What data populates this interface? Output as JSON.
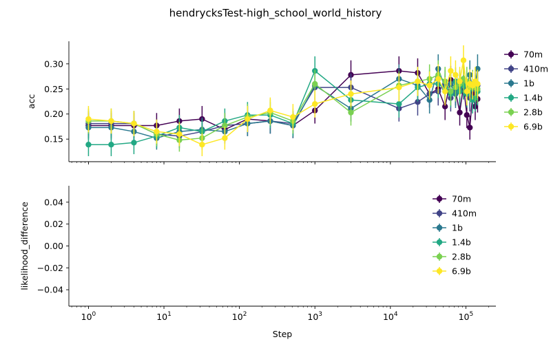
{
  "figure": {
    "title": "hendrycksTest-high_school_world_history",
    "xlabel": "Step"
  },
  "chart_data": [
    {
      "type": "line",
      "panel": "top",
      "ylabel": "acc",
      "xscale": "log",
      "xlim": [
        0.55,
        250000
      ],
      "ylim": [
        0.105,
        0.345
      ],
      "yticks": [
        0.15,
        0.2,
        0.25,
        0.3
      ],
      "ytick_labels": [
        "0.15",
        "0.20",
        "0.25",
        "0.30"
      ],
      "xticks": [
        1,
        10,
        100,
        1000,
        10000,
        100000
      ],
      "xtick_labels": [
        "10^0",
        "10^1",
        "10^2",
        "10^3",
        "10^4",
        "10^5"
      ],
      "legend_position": "outside-right",
      "series": [
        {
          "name": "70m",
          "color": "#440154",
          "x": [
            1,
            2,
            4,
            8,
            16,
            32,
            64,
            128,
            256,
            512,
            1000,
            3000,
            13000,
            23000,
            33000,
            43000,
            53000,
            63000,
            73000,
            83000,
            93000,
            103000,
            113000,
            123000,
            133000,
            143000
          ],
          "y": [
            0.177,
            0.177,
            0.177,
            0.177,
            0.186,
            0.19,
            0.169,
            0.19,
            0.186,
            0.177,
            0.207,
            0.278,
            0.286,
            0.282,
            0.24,
            0.25,
            0.215,
            0.268,
            0.245,
            0.203,
            0.257,
            0.198,
            0.173,
            0.24,
            0.215,
            0.23
          ],
          "err": [
            0.025,
            0.025,
            0.025,
            0.025,
            0.025,
            0.026,
            0.024,
            0.026,
            0.025,
            0.025,
            0.026,
            0.029,
            0.029,
            0.029,
            0.027,
            0.028,
            0.027,
            0.028,
            0.028,
            0.026,
            0.028,
            0.026,
            0.024,
            0.027,
            0.027,
            0.027
          ]
        },
        {
          "name": "410m",
          "color": "#414487",
          "x": [
            1,
            2,
            4,
            8,
            16,
            32,
            64,
            128,
            256,
            512,
            1000,
            3000,
            13000,
            23000,
            33000,
            43000,
            53000,
            63000,
            73000,
            83000,
            93000,
            103000,
            113000,
            123000,
            133000,
            143000
          ],
          "y": [
            0.181,
            0.181,
            0.181,
            0.16,
            0.156,
            0.165,
            0.177,
            0.181,
            0.186,
            0.181,
            0.253,
            0.253,
            0.211,
            0.224,
            0.24,
            0.245,
            0.26,
            0.232,
            0.245,
            0.25,
            0.265,
            0.24,
            0.232,
            0.257,
            0.25,
            0.257
          ],
          "err": [
            0.025,
            0.025,
            0.025,
            0.024,
            0.024,
            0.024,
            0.025,
            0.025,
            0.025,
            0.025,
            0.028,
            0.028,
            0.026,
            0.027,
            0.027,
            0.028,
            0.028,
            0.027,
            0.028,
            0.028,
            0.028,
            0.027,
            0.027,
            0.028,
            0.028,
            0.028
          ]
        },
        {
          "name": "1b",
          "color": "#2a788e",
          "x": [
            1,
            2,
            4,
            8,
            16,
            32,
            64,
            128,
            256,
            512,
            1000,
            3000,
            13000,
            23000,
            33000,
            43000,
            53000,
            63000,
            73000,
            83000,
            93000,
            103000,
            113000,
            123000,
            133000,
            143000
          ],
          "y": [
            0.173,
            0.173,
            0.165,
            0.152,
            0.165,
            0.169,
            0.165,
            0.181,
            0.186,
            0.177,
            0.257,
            0.211,
            0.27,
            0.257,
            0.228,
            0.29,
            0.253,
            0.26,
            0.24,
            0.257,
            0.27,
            0.257,
            0.278,
            0.25,
            0.257,
            0.29
          ],
          "err": [
            0.024,
            0.024,
            0.024,
            0.023,
            0.024,
            0.024,
            0.024,
            0.025,
            0.025,
            0.025,
            0.028,
            0.026,
            0.029,
            0.028,
            0.027,
            0.029,
            0.028,
            0.028,
            0.028,
            0.028,
            0.029,
            0.028,
            0.029,
            0.028,
            0.028,
            0.029
          ]
        },
        {
          "name": "1.4b",
          "color": "#22a884",
          "x": [
            1,
            2,
            4,
            8,
            16,
            32,
            64,
            128,
            256,
            512,
            1000,
            3000,
            13000,
            23000,
            33000,
            43000,
            53000,
            63000,
            73000,
            83000,
            93000,
            103000,
            113000,
            123000,
            133000,
            143000
          ],
          "y": [
            0.139,
            0.139,
            0.143,
            0.156,
            0.173,
            0.165,
            0.186,
            0.198,
            0.198,
            0.181,
            0.286,
            0.228,
            0.22,
            0.253,
            0.26,
            0.26,
            0.25,
            0.24,
            0.265,
            0.245,
            0.257,
            0.24,
            0.25,
            0.228,
            0.232,
            0.245
          ],
          "err": [
            0.023,
            0.023,
            0.023,
            0.024,
            0.025,
            0.024,
            0.025,
            0.026,
            0.026,
            0.025,
            0.029,
            0.027,
            0.027,
            0.028,
            0.028,
            0.028,
            0.028,
            0.027,
            0.028,
            0.028,
            0.028,
            0.027,
            0.028,
            0.027,
            0.027,
            0.028
          ]
        },
        {
          "name": "2.8b",
          "color": "#7ad151",
          "x": [
            1,
            2,
            4,
            8,
            16,
            32,
            64,
            128,
            256,
            512,
            1000,
            3000,
            13000,
            23000,
            33000,
            43000,
            53000,
            63000,
            73000,
            83000,
            93000,
            103000,
            113000,
            123000,
            133000,
            143000
          ],
          "y": [
            0.186,
            0.186,
            0.181,
            0.16,
            0.148,
            0.152,
            0.177,
            0.194,
            0.203,
            0.186,
            0.26,
            0.203,
            0.257,
            0.265,
            0.27,
            0.278,
            0.265,
            0.245,
            0.253,
            0.26,
            0.27,
            0.265,
            0.253,
            0.26,
            0.253,
            0.25
          ],
          "err": [
            0.025,
            0.025,
            0.025,
            0.024,
            0.023,
            0.023,
            0.025,
            0.026,
            0.026,
            0.025,
            0.028,
            0.026,
            0.028,
            0.029,
            0.029,
            0.029,
            0.029,
            0.028,
            0.028,
            0.028,
            0.029,
            0.029,
            0.028,
            0.028,
            0.028,
            0.028
          ]
        },
        {
          "name": "6.9b",
          "color": "#fde725",
          "x": [
            1,
            2,
            4,
            8,
            16,
            32,
            64,
            128,
            256,
            512,
            1000,
            3000,
            13000,
            23000,
            33000,
            43000,
            53000,
            63000,
            73000,
            83000,
            93000,
            103000,
            113000,
            123000,
            133000,
            143000
          ],
          "y": [
            0.19,
            0.186,
            0.181,
            0.165,
            0.16,
            0.139,
            0.152,
            0.19,
            0.207,
            0.194,
            0.22,
            0.24,
            0.253,
            0.265,
            0.257,
            0.27,
            0.245,
            0.286,
            0.278,
            0.265,
            0.307,
            0.245,
            0.26,
            0.257,
            0.265,
            0.26
          ],
          "err": [
            0.026,
            0.025,
            0.025,
            0.024,
            0.024,
            0.023,
            0.023,
            0.026,
            0.026,
            0.026,
            0.027,
            0.027,
            0.028,
            0.029,
            0.028,
            0.029,
            0.028,
            0.029,
            0.029,
            0.029,
            0.03,
            0.028,
            0.029,
            0.028,
            0.029,
            0.028
          ]
        }
      ]
    },
    {
      "type": "line",
      "panel": "bottom",
      "ylabel": "likelihood_difference",
      "xlabel": "Step",
      "xscale": "log",
      "xlim": [
        0.55,
        250000
      ],
      "ylim": [
        -0.055,
        0.055
      ],
      "yticks": [
        -0.04,
        -0.02,
        0.0,
        0.02,
        0.04
      ],
      "ytick_labels": [
        "−0.04",
        "−0.02",
        "0.00",
        "0.02",
        "0.04"
      ],
      "xticks": [
        1,
        10,
        100,
        1000,
        10000,
        100000
      ],
      "xtick_labels": [
        "10^0",
        "10^1",
        "10^2",
        "10^3",
        "10^4",
        "10^5"
      ],
      "legend_position": "upper-right",
      "series": [
        {
          "name": "70m",
          "color": "#440154",
          "x": [],
          "y": []
        },
        {
          "name": "410m",
          "color": "#414487",
          "x": [],
          "y": []
        },
        {
          "name": "1b",
          "color": "#2a788e",
          "x": [],
          "y": []
        },
        {
          "name": "1.4b",
          "color": "#22a884",
          "x": [],
          "y": []
        },
        {
          "name": "2.8b",
          "color": "#7ad151",
          "x": [],
          "y": []
        },
        {
          "name": "6.9b",
          "color": "#fde725",
          "x": [],
          "y": []
        }
      ]
    }
  ]
}
